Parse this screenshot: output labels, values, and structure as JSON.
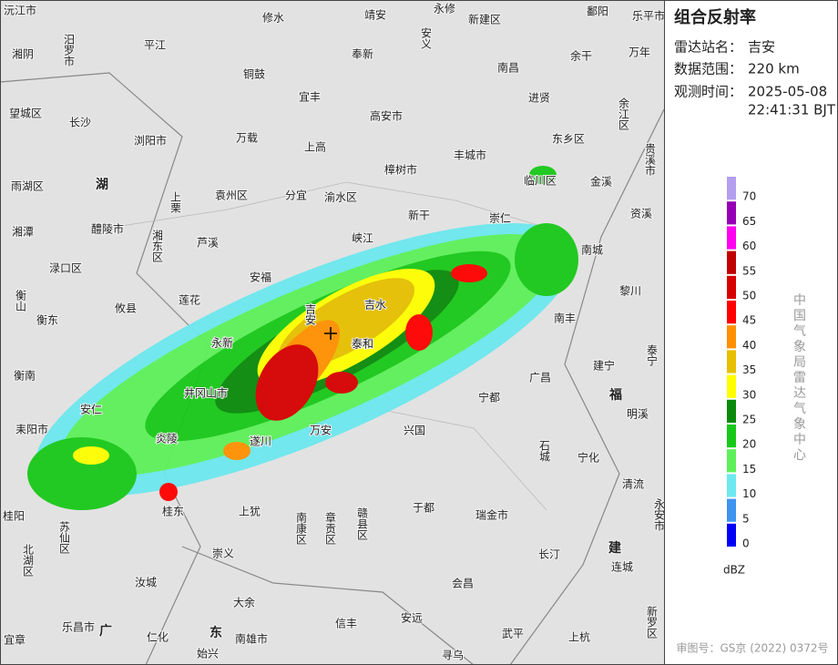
{
  "panel": {
    "title": "组合反射率",
    "station_label": "雷达站名：",
    "station": "吉安",
    "range_label": "数据范围：",
    "range": "220 km",
    "time_label": "观测时间：",
    "time": [
      "2025-05-08",
      "22:41:31 BJT"
    ]
  },
  "legend": {
    "unit": "dBZ",
    "items": [
      {
        "value": 0,
        "color": "#0000f6"
      },
      {
        "value": 5,
        "color": "#3f94f0"
      },
      {
        "value": 10,
        "color": "#6de8ee"
      },
      {
        "value": 15,
        "color": "#5ef05a"
      },
      {
        "value": 20,
        "color": "#18c818"
      },
      {
        "value": 25,
        "color": "#0a8a0a"
      },
      {
        "value": 30,
        "color": "#ffff00"
      },
      {
        "value": 35,
        "color": "#e6c000"
      },
      {
        "value": 40,
        "color": "#ff9000"
      },
      {
        "value": 45,
        "color": "#ff0000"
      },
      {
        "value": 50,
        "color": "#d60000"
      },
      {
        "value": 55,
        "color": "#c00000"
      },
      {
        "value": 60,
        "color": "#ff00f0"
      },
      {
        "value": 65,
        "color": "#9600b4"
      },
      {
        "value": 70,
        "color": "#b39ef0"
      }
    ]
  },
  "credit": "中国气象局雷达气象中心",
  "approval": "审图号：GS京 (2022) 0372号",
  "places": [
    "沅江市",
    "修水",
    "靖安",
    "永修",
    "新建区",
    "鄱阳",
    "乐平市",
    "湘阴",
    "汨罗市",
    "平江",
    "安义",
    "奉新",
    "南昌",
    "余干",
    "万年",
    "铜鼓",
    "宜丰",
    "进贤",
    "望城区",
    "长沙",
    "高安市",
    "余江区",
    "浏阳市",
    "万载",
    "上高",
    "东乡区",
    "贵溪市",
    "樟树市",
    "丰城市",
    "临川区",
    "金溪",
    "雨湖区",
    "湖",
    "上栗",
    "袁州区",
    "分宜",
    "渝水区",
    "新干",
    "崇仁",
    "资溪",
    "湘潭",
    "醴陵市",
    "湘东区",
    "芦溪",
    "峡江",
    "南城",
    "渌口区",
    "安福",
    "黎川",
    "衡山",
    "攸县",
    "莲花",
    "吉安",
    "吉水",
    "南丰",
    "衡东",
    "永新",
    "泰和",
    "泰宁",
    "衡南",
    "井冈山市",
    "广昌",
    "建宁",
    "福",
    "安仁",
    "遂川",
    "万安",
    "兴国",
    "宁都",
    "明溪",
    "耒阳市",
    "石城",
    "宁化",
    "炎陵",
    "桂东",
    "上犹",
    "于都",
    "清流",
    "瑞金市",
    "桂阳",
    "苏仙区",
    "南康区",
    "章贡区",
    "赣县区",
    "永安市",
    "北湖区",
    "崇义",
    "长汀",
    "建",
    "连城",
    "汝城",
    "会昌",
    "大余",
    "新罗区",
    "乐昌市",
    "广",
    "仁化",
    "东",
    "南雄市",
    "信丰",
    "安远",
    "武平",
    "上杭",
    "宜章",
    "始兴",
    "寻乌"
  ]
}
